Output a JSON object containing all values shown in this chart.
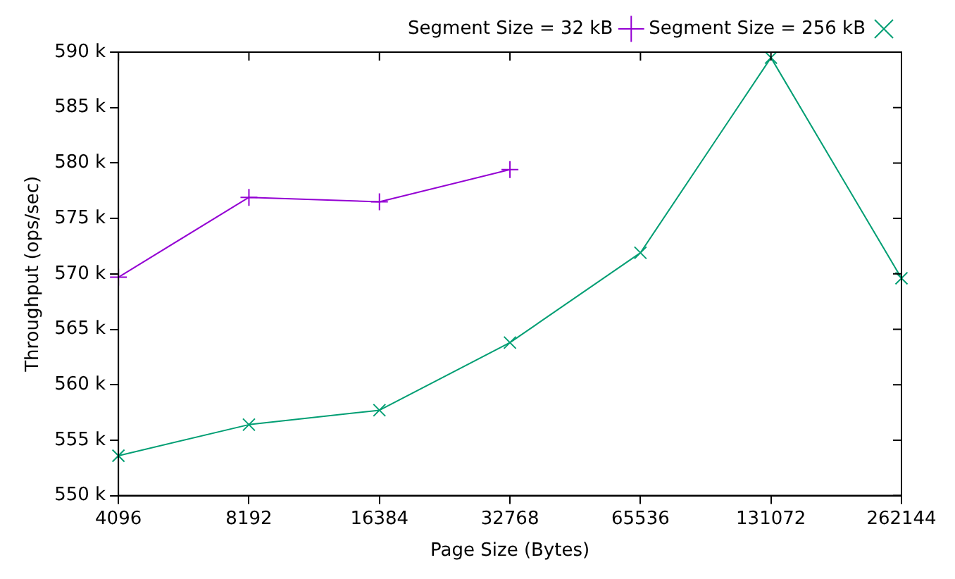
{
  "chart_data": {
    "type": "line",
    "xlabel": "Page Size (Bytes)",
    "ylabel": "Throughput (ops/sec)",
    "categories": [
      "4096",
      "8192",
      "16384",
      "32768",
      "65536",
      "131072",
      "262144"
    ],
    "series": [
      {
        "name": "Segment Size = 32 kB",
        "color": "#9400d3",
        "marker": "cross",
        "values": [
          569700,
          576900,
          576500,
          579400,
          null,
          null,
          null
        ]
      },
      {
        "name": "Segment Size = 256 kB",
        "color": "#009e73",
        "marker": "x",
        "values": [
          553600,
          556400,
          557700,
          563800,
          571900,
          589500,
          569600
        ]
      }
    ],
    "ylim": [
      550000,
      590000
    ],
    "yticks": [
      {
        "value": 550000,
        "label": "550 k"
      },
      {
        "value": 555000,
        "label": "555 k"
      },
      {
        "value": 560000,
        "label": "560 k"
      },
      {
        "value": 565000,
        "label": "565 k"
      },
      {
        "value": 570000,
        "label": "570 k"
      },
      {
        "value": 575000,
        "label": "575 k"
      },
      {
        "value": 580000,
        "label": "580 k"
      },
      {
        "value": 585000,
        "label": "585 k"
      },
      {
        "value": 590000,
        "label": "590 k"
      }
    ],
    "grid": false,
    "legend": "top right",
    "line_style": "solid"
  }
}
